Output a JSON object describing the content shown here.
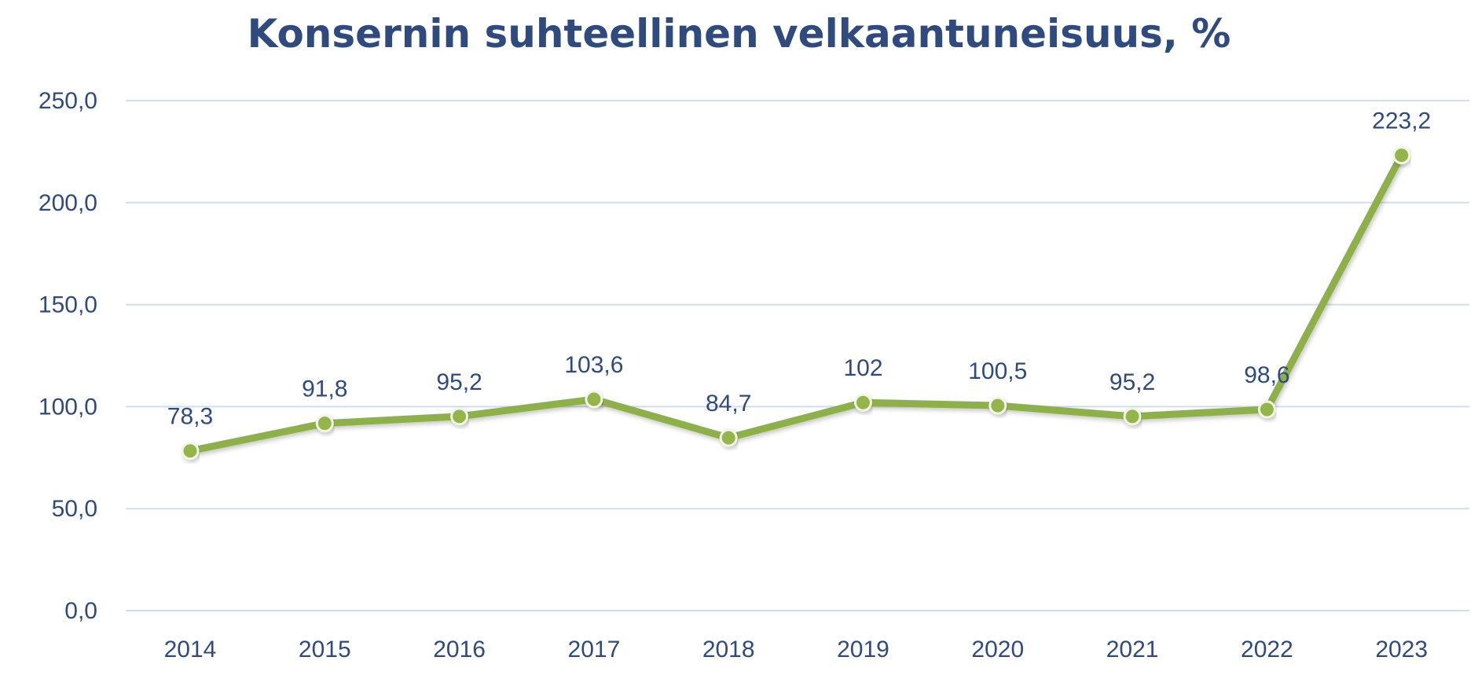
{
  "chart_data": {
    "type": "line",
    "title": "Konsernin suhteellinen velkaantuneisuus, %",
    "xlabel": "",
    "ylabel": "",
    "categories": [
      "2014",
      "2015",
      "2016",
      "2017",
      "2018",
      "2019",
      "2020",
      "2021",
      "2022",
      "2023"
    ],
    "series": [
      {
        "values": [
          78.3,
          91.8,
          95.2,
          103.6,
          84.7,
          102,
          100.5,
          95.2,
          98.6,
          223.2
        ],
        "data_labels": [
          "78,3",
          "91,8",
          "95,2",
          "103,6",
          "84,7",
          "102",
          "100,5",
          "95,2",
          "98,6",
          "223,2"
        ],
        "color": "#8db04a"
      }
    ],
    "ylim": [
      0,
      250
    ],
    "yticks": [
      0,
      50,
      100,
      150,
      200,
      250
    ],
    "ytick_labels": [
      "0,0",
      "50,0",
      "100,0",
      "150,0",
      "200,0",
      "250,0"
    ],
    "grid": true,
    "legend": "none"
  },
  "colors": {
    "title": "#2e4a7e",
    "text": "#2e4a7e",
    "gridline": "#d3ddeb",
    "line": "#8db04a",
    "marker_fill": "#93b548",
    "marker_stroke": "#f2f6e6"
  }
}
